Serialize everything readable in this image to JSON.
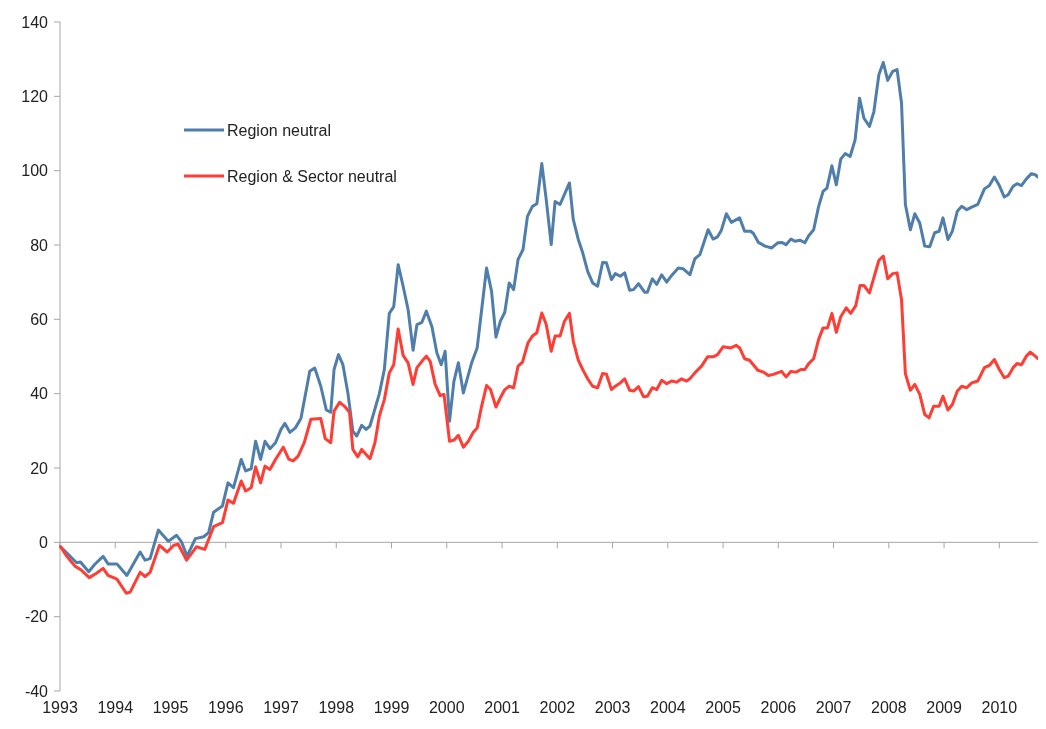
{
  "chart_data": {
    "type": "line",
    "xlim": [
      1993,
      2010.7
    ],
    "xticks": [
      1993,
      1994,
      1995,
      1996,
      1997,
      1998,
      1999,
      2000,
      2001,
      2002,
      2003,
      2004,
      2005,
      2006,
      2007,
      2008,
      2009,
      2010
    ],
    "ylim": [
      -40,
      140
    ],
    "yticks": [
      -40,
      -20,
      0,
      20,
      40,
      60,
      80,
      100,
      120,
      140
    ],
    "legend": "top left",
    "marker": "none",
    "line_style": "solid",
    "series": [
      {
        "name": "Region neutral",
        "color": "#4f7eab",
        "x": [
          1993.01,
          1993.18,
          1993.3,
          1993.37,
          1993.52,
          1993.63,
          1993.78,
          1993.87,
          1994.03,
          1994.21,
          1994.45,
          1994.54,
          1994.63,
          1994.78,
          1994.96,
          1995.11,
          1995.2,
          1995.3,
          1995.45,
          1995.6,
          1995.69,
          1995.78,
          1995.94,
          1996.04,
          1996.14,
          1996.28,
          1996.36,
          1996.46,
          1996.54,
          1996.63,
          1996.71,
          1996.8,
          1996.9,
          1997,
          1997.07,
          1997.16,
          1997.26,
          1997.36,
          1997.52,
          1997.61,
          1997.72,
          1997.82,
          1997.9,
          1997.96,
          1998.04,
          1998.12,
          1998.21,
          1998.3,
          1998.37,
          1998.46,
          1998.54,
          1998.61,
          1998.78,
          1998.87,
          1998.96,
          1999.04,
          1999.12,
          1999.21,
          1999.3,
          1999.39,
          1999.46,
          1999.55,
          1999.63,
          1999.73,
          1999.82,
          1999.9,
          1999.97,
          2000.05,
          2000.13,
          2000.21,
          2000.3,
          2000.45,
          2000.55,
          2000.72,
          2000.81,
          2000.89,
          2000.97,
          2001.05,
          2001.13,
          2001.21,
          2001.29,
          2001.38,
          2001.46,
          2001.55,
          2001.63,
          2001.72,
          2001.8,
          2001.89,
          2001.96,
          2002.05,
          2002.22,
          2002.29,
          2002.38,
          2002.46,
          2002.55,
          2002.64,
          2002.73,
          2002.82,
          2002.89,
          2002.98,
          2003.05,
          2003.14,
          2003.22,
          2003.31,
          2003.38,
          2003.47,
          2003.58,
          2003.63,
          2003.72,
          2003.8,
          2003.89,
          2003.98,
          2004.07,
          2004.19,
          2004.28,
          2004.4,
          2004.49,
          2004.58,
          2004.73,
          2004.82,
          2004.9,
          2004.97,
          2005.06,
          2005.15,
          2005.3,
          2005.39,
          2005.5,
          2005.55,
          2005.64,
          2005.76,
          2005.88,
          2005.99,
          2006.06,
          2006.14,
          2006.23,
          2006.3,
          2006.39,
          2006.48,
          2006.55,
          2006.64,
          2006.73,
          2006.81,
          2006.88,
          2006.97,
          2007.05,
          2007.13,
          2007.21,
          2007.3,
          2007.39,
          2007.47,
          2007.55,
          2007.65,
          2007.73,
          2007.82,
          2007.9,
          2007.98,
          2008.07,
          2008.15,
          2008.23,
          2008.3,
          2008.39,
          2008.47,
          2008.56,
          2008.65,
          2008.74,
          2008.83,
          2008.91,
          2008.98,
          2009.07,
          2009.15,
          2009.24,
          2009.32,
          2009.41,
          2009.5,
          2009.61,
          2009.73,
          2009.82,
          2009.91,
          2010,
          2010.09,
          2010.16,
          2010.25,
          2010.32,
          2010.4,
          2010.49,
          2010.58,
          2010.65,
          2010.7
        ],
        "values": [
          -1.2,
          -3.7,
          -5.5,
          -5.3,
          -7.9,
          -5.9,
          -3.8,
          -5.8,
          -5.8,
          -8.9,
          -2.6,
          -4.8,
          -4.4,
          3.3,
          0.3,
          1.9,
          0.1,
          -3.7,
          1,
          1.5,
          2.6,
          8.1,
          9.8,
          16,
          14.7,
          22.3,
          19.2,
          19.8,
          27.2,
          22.3,
          27.2,
          25.2,
          26.8,
          30.4,
          32,
          29.6,
          30.8,
          33.3,
          46,
          46.9,
          42,
          35.6,
          35,
          46.5,
          50.5,
          47.8,
          40.2,
          29.9,
          28.6,
          31.5,
          30.4,
          31.3,
          40,
          46.5,
          61.6,
          63.4,
          74.7,
          68.9,
          62.6,
          51.7,
          58.6,
          59.2,
          62.2,
          58.1,
          51,
          47.8,
          51.4,
          32.6,
          43.4,
          48.3,
          40.2,
          48.3,
          52.3,
          73.8,
          67.6,
          55.2,
          59.5,
          61.9,
          69.8,
          68,
          76.1,
          78.8,
          87.7,
          90.4,
          91.1,
          101.9,
          92.2,
          80.1,
          91.7,
          90.9,
          96.7,
          86.8,
          81.5,
          77.9,
          72.9,
          69.8,
          68.9,
          75.3,
          75.2,
          70.7,
          72.3,
          71.6,
          72.5,
          67.8,
          68,
          69.6,
          67.3,
          67.3,
          70.9,
          69.4,
          72,
          70,
          71.8,
          73.8,
          73.6,
          72,
          76.3,
          77.4,
          84.1,
          81.6,
          82.2,
          84,
          88.4,
          86.1,
          87.3,
          83.7,
          83.7,
          83.1,
          80.7,
          79.7,
          79.2,
          80.6,
          80.7,
          80.1,
          81.6,
          81,
          81.3,
          80.6,
          82.5,
          84.1,
          90.4,
          94.4,
          95.3,
          101.3,
          96.2,
          103.1,
          104.6,
          103.8,
          108.3,
          119.5,
          114.1,
          111.9,
          115.9,
          125.8,
          129.1,
          124.3,
          126.7,
          127.2,
          118.2,
          90.9,
          84.1,
          88.4,
          85.9,
          79.7,
          79.5,
          83.3,
          83.7,
          87.3,
          81.5,
          83.7,
          89.1,
          90.4,
          89.5,
          90.2,
          90.9,
          95.1,
          96,
          98.3,
          96,
          92.9,
          93.5,
          95.8,
          96.5,
          96,
          97.8,
          99.2,
          98.9,
          98.3
        ]
      },
      {
        "name": "Region & Sector neutral",
        "color": "#fe3d35",
        "x": [
          1993.01,
          1993.12,
          1993.27,
          1993.37,
          1993.53,
          1993.66,
          1993.78,
          1993.87,
          1994.03,
          1994.2,
          1994.27,
          1994.45,
          1994.54,
          1994.63,
          1994.8,
          1994.94,
          1995.06,
          1995.14,
          1995.29,
          1995.47,
          1995.62,
          1995.78,
          1995.94,
          1996.04,
          1996.14,
          1996.28,
          1996.36,
          1996.46,
          1996.54,
          1996.63,
          1996.71,
          1996.8,
          1996.9,
          1997.04,
          1997.14,
          1997.22,
          1997.31,
          1997.42,
          1997.54,
          1997.72,
          1997.8,
          1997.9,
          1997.96,
          1998.06,
          1998.15,
          1998.24,
          1998.3,
          1998.39,
          1998.46,
          1998.61,
          1998.7,
          1998.78,
          1998.87,
          1998.96,
          1999.04,
          1999.12,
          1999.21,
          1999.3,
          1999.39,
          1999.46,
          1999.55,
          1999.63,
          1999.7,
          1999.79,
          1999.88,
          1999.95,
          2000.05,
          2000.13,
          2000.21,
          2000.3,
          2000.39,
          2000.48,
          2000.55,
          2000.63,
          2000.72,
          2000.79,
          2000.89,
          2000.97,
          2001.05,
          2001.13,
          2001.21,
          2001.29,
          2001.37,
          2001.47,
          2001.55,
          2001.63,
          2001.72,
          2001.8,
          2001.89,
          2001.96,
          2002.05,
          2002.13,
          2002.22,
          2002.29,
          2002.38,
          2002.46,
          2002.55,
          2002.64,
          2002.73,
          2002.82,
          2002.89,
          2002.98,
          2003.05,
          2003.14,
          2003.22,
          2003.31,
          2003.38,
          2003.47,
          2003.56,
          2003.63,
          2003.72,
          2003.8,
          2003.89,
          2003.98,
          2004.07,
          2004.16,
          2004.25,
          2004.34,
          2004.4,
          2004.49,
          2004.61,
          2004.72,
          2004.82,
          2004.9,
          2005,
          2005.14,
          2005.24,
          2005.3,
          2005.39,
          2005.48,
          2005.63,
          2005.73,
          2005.82,
          2005.91,
          2006.06,
          2006.14,
          2006.23,
          2006.32,
          2006.41,
          2006.48,
          2006.55,
          2006.64,
          2006.73,
          2006.81,
          2006.89,
          2006.97,
          2007.05,
          2007.13,
          2007.23,
          2007.31,
          2007.4,
          2007.48,
          2007.55,
          2007.65,
          2007.73,
          2007.82,
          2007.9,
          2007.98,
          2008.07,
          2008.15,
          2008.23,
          2008.3,
          2008.39,
          2008.47,
          2008.56,
          2008.65,
          2008.73,
          2008.81,
          2008.91,
          2008.98,
          2009.07,
          2009.15,
          2009.24,
          2009.32,
          2009.41,
          2009.5,
          2009.61,
          2009.73,
          2009.82,
          2009.91,
          2010,
          2010.09,
          2010.16,
          2010.25,
          2010.32,
          2010.4,
          2010.49,
          2010.56,
          2010.65,
          2010.7
        ],
        "values": [
          -1.2,
          -3.7,
          -6.4,
          -7.3,
          -9.5,
          -8.3,
          -7,
          -8.9,
          -9.9,
          -13.7,
          -13.4,
          -8.1,
          -9.2,
          -8.1,
          -0.8,
          -2.6,
          -0.8,
          -0.5,
          -4.8,
          -1.2,
          -1.9,
          4.2,
          5.3,
          11.4,
          10.5,
          16.5,
          13.8,
          14.7,
          20.3,
          16,
          20.5,
          19.6,
          22.3,
          25.6,
          22.4,
          21.9,
          23.2,
          26.8,
          33.1,
          33.3,
          27.9,
          26.8,
          35.3,
          37.7,
          36.6,
          35,
          25,
          23,
          25,
          22.5,
          26.8,
          34,
          38.4,
          45.6,
          47.8,
          57.4,
          50.3,
          48.3,
          42.5,
          47,
          48.7,
          50.1,
          48.7,
          42.5,
          39.5,
          39.8,
          27.2,
          27.5,
          28.8,
          25.6,
          27.2,
          29.6,
          30.8,
          36.6,
          42.2,
          41.2,
          36.4,
          38.9,
          41.1,
          42,
          41.6,
          47.4,
          48.5,
          53.7,
          55.5,
          56.4,
          61.7,
          58.6,
          51.4,
          55.5,
          55.5,
          59.5,
          61.6,
          54.1,
          49,
          46.5,
          44,
          42,
          41.6,
          45.4,
          45.2,
          41.1,
          42,
          42.9,
          44,
          40.9,
          40.7,
          41.9,
          39.2,
          39.3,
          41.6,
          41.1,
          43.6,
          42.7,
          43.4,
          43.1,
          44,
          43.4,
          44,
          45.6,
          47.4,
          49.9,
          49.9,
          50.5,
          52.6,
          52.3,
          53,
          52.3,
          49.4,
          49,
          46.3,
          45.8,
          44.9,
          45.2,
          46,
          44.5,
          46,
          45.8,
          46.5,
          46.5,
          48.1,
          49.4,
          54.6,
          57.7,
          57.7,
          61.6,
          56.5,
          60.7,
          63.1,
          61.6,
          63.6,
          69.1,
          69.1,
          67.1,
          71.2,
          75.9,
          77,
          70.9,
          72.3,
          72.5,
          65.3,
          45.4,
          40.9,
          42.5,
          39.8,
          34.4,
          33.5,
          36.6,
          36.6,
          39.3,
          35.6,
          37.1,
          40.7,
          42,
          41.6,
          42.9,
          43.4,
          47,
          47.6,
          49.2,
          46.5,
          44.3,
          44.7,
          47,
          48.1,
          47.8,
          50.1,
          51.2,
          50.1,
          49.4
        ]
      }
    ]
  }
}
